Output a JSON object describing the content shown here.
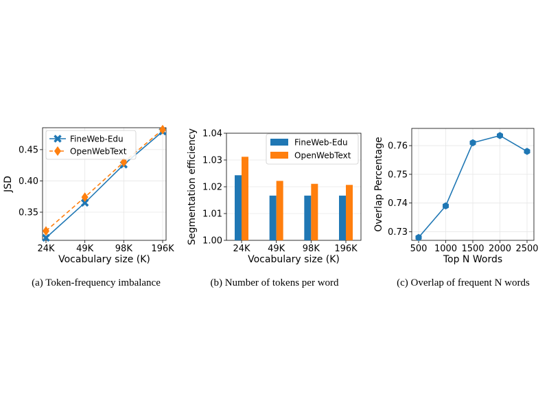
{
  "colors": {
    "blue": "#1f77b4",
    "orange": "#ff7f0e",
    "grid": "#e6e6e6"
  },
  "chart_data": [
    {
      "type": "line",
      "caption": "(a) Token-frequency imbalance",
      "xlabel": "Vocabulary size (K)",
      "ylabel": "JSD",
      "categories": [
        "24K",
        "49K",
        "98K",
        "196K"
      ],
      "ylim": [
        0.305,
        0.485
      ],
      "yticks": [
        0.35,
        0.4,
        0.45
      ],
      "ytick_labels": [
        "0.35",
        "0.40",
        "0.45"
      ],
      "grid": true,
      "legend": "top-left",
      "series": [
        {
          "name": "FineWeb-Edu",
          "values": [
            0.309,
            0.365,
            0.426,
            0.479
          ],
          "color": "#1f77b4",
          "marker": "x",
          "linestyle": "solid"
        },
        {
          "name": "OpenWebText",
          "values": [
            0.32,
            0.374,
            0.43,
            0.482
          ],
          "color": "#ff7f0e",
          "marker": "diamond",
          "linestyle": "dashed"
        }
      ]
    },
    {
      "type": "bar",
      "caption": "(b) Number of tokens per word",
      "xlabel": "Vocabulary size (K)",
      "ylabel": "Segmentation efficiency",
      "categories": [
        "24K",
        "49K",
        "98K",
        "196K"
      ],
      "ylim": [
        1.0,
        1.04
      ],
      "yticks": [
        1.0,
        1.01,
        1.02,
        1.03,
        1.04
      ],
      "ytick_labels": [
        "1.00",
        "1.01",
        "1.02",
        "1.03",
        "1.04"
      ],
      "grid": true,
      "legend": "top-right",
      "series": [
        {
          "name": "FineWeb-Edu",
          "values": [
            1.0243,
            1.0167,
            1.0167,
            1.0167
          ],
          "color": "#1f77b4"
        },
        {
          "name": "OpenWebText",
          "values": [
            1.0312,
            1.0222,
            1.0211,
            1.0207
          ],
          "color": "#ff7f0e"
        }
      ]
    },
    {
      "type": "line",
      "caption": "(c) Overlap of frequent N words",
      "xlabel": "Top N Words",
      "ylabel": "Overlap Percentage",
      "categories": [
        "500",
        "1000",
        "1500",
        "2000",
        "2500"
      ],
      "ylim": [
        0.727,
        0.766
      ],
      "yticks": [
        0.73,
        0.74,
        0.75,
        0.76
      ],
      "ytick_labels": [
        "0.73",
        "0.74",
        "0.75",
        "0.76"
      ],
      "grid": true,
      "series": [
        {
          "values": [
            0.728,
            0.739,
            0.761,
            0.7635,
            0.758
          ],
          "color": "#1f77b4",
          "marker": "hexagon",
          "linestyle": "solid"
        }
      ]
    }
  ]
}
